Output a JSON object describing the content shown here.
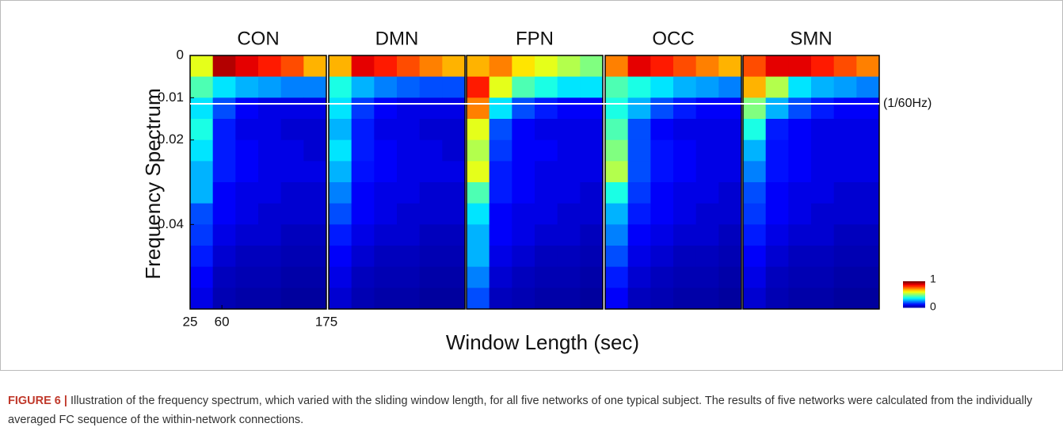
{
  "chart_data": {
    "type": "heatmap",
    "xlabel": "Window Length (sec)",
    "ylabel": "Frequency Spectrum",
    "xlim": [
      25,
      175
    ],
    "xticks": [
      25,
      60,
      175
    ],
    "ylim": [
      0,
      0.06
    ],
    "yticks": [
      0,
      0.01,
      0.02,
      0.04
    ],
    "annotation": "(1/60Hz)",
    "colorbar": {
      "lim": [
        0,
        1
      ],
      "ticks": [
        1,
        0
      ]
    },
    "panels": [
      {
        "title": "CON",
        "z": [
          [
            0.6,
            0.95,
            0.9,
            0.85,
            0.8,
            0.7
          ],
          [
            0.45,
            0.35,
            0.3,
            0.28,
            0.25,
            0.25
          ],
          [
            0.35,
            0.2,
            0.12,
            0.1,
            0.1,
            0.1
          ],
          [
            0.4,
            0.15,
            0.1,
            0.1,
            0.08,
            0.08
          ],
          [
            0.35,
            0.15,
            0.12,
            0.1,
            0.1,
            0.08
          ],
          [
            0.3,
            0.15,
            0.12,
            0.1,
            0.1,
            0.1
          ],
          [
            0.3,
            0.12,
            0.1,
            0.1,
            0.08,
            0.08
          ],
          [
            0.2,
            0.12,
            0.1,
            0.08,
            0.08,
            0.08
          ],
          [
            0.18,
            0.1,
            0.08,
            0.08,
            0.06,
            0.06
          ],
          [
            0.15,
            0.08,
            0.06,
            0.06,
            0.05,
            0.05
          ],
          [
            0.12,
            0.06,
            0.05,
            0.05,
            0.04,
            0.04
          ],
          [
            0.1,
            0.05,
            0.04,
            0.04,
            0.03,
            0.03
          ]
        ]
      },
      {
        "title": "DMN",
        "z": [
          [
            0.7,
            0.9,
            0.85,
            0.8,
            0.75,
            0.7
          ],
          [
            0.4,
            0.3,
            0.25,
            0.22,
            0.2,
            0.2
          ],
          [
            0.35,
            0.18,
            0.12,
            0.1,
            0.1,
            0.1
          ],
          [
            0.3,
            0.15,
            0.1,
            0.1,
            0.08,
            0.08
          ],
          [
            0.35,
            0.15,
            0.12,
            0.1,
            0.1,
            0.08
          ],
          [
            0.3,
            0.14,
            0.12,
            0.1,
            0.1,
            0.1
          ],
          [
            0.25,
            0.12,
            0.1,
            0.1,
            0.08,
            0.08
          ],
          [
            0.2,
            0.12,
            0.1,
            0.08,
            0.08,
            0.08
          ],
          [
            0.15,
            0.1,
            0.08,
            0.08,
            0.06,
            0.06
          ],
          [
            0.12,
            0.08,
            0.06,
            0.06,
            0.05,
            0.05
          ],
          [
            0.1,
            0.06,
            0.05,
            0.05,
            0.04,
            0.04
          ],
          [
            0.08,
            0.05,
            0.04,
            0.04,
            0.03,
            0.03
          ]
        ]
      },
      {
        "title": "FPN",
        "z": [
          [
            0.7,
            0.75,
            0.65,
            0.6,
            0.55,
            0.5
          ],
          [
            0.85,
            0.6,
            0.45,
            0.4,
            0.35,
            0.35
          ],
          [
            0.75,
            0.35,
            0.2,
            0.15,
            0.12,
            0.12
          ],
          [
            0.6,
            0.2,
            0.12,
            0.1,
            0.1,
            0.1
          ],
          [
            0.55,
            0.18,
            0.12,
            0.12,
            0.1,
            0.1
          ],
          [
            0.6,
            0.15,
            0.12,
            0.1,
            0.1,
            0.1
          ],
          [
            0.45,
            0.15,
            0.12,
            0.1,
            0.1,
            0.08
          ],
          [
            0.35,
            0.12,
            0.1,
            0.1,
            0.08,
            0.08
          ],
          [
            0.3,
            0.12,
            0.1,
            0.08,
            0.08,
            0.06
          ],
          [
            0.3,
            0.1,
            0.08,
            0.06,
            0.06,
            0.05
          ],
          [
            0.25,
            0.08,
            0.06,
            0.05,
            0.05,
            0.04
          ],
          [
            0.2,
            0.06,
            0.05,
            0.04,
            0.04,
            0.03
          ]
        ]
      },
      {
        "title": "OCC",
        "z": [
          [
            0.75,
            0.9,
            0.85,
            0.8,
            0.75,
            0.7
          ],
          [
            0.45,
            0.4,
            0.35,
            0.3,
            0.28,
            0.25
          ],
          [
            0.4,
            0.3,
            0.2,
            0.15,
            0.12,
            0.12
          ],
          [
            0.45,
            0.2,
            0.12,
            0.1,
            0.1,
            0.1
          ],
          [
            0.5,
            0.2,
            0.14,
            0.12,
            0.1,
            0.1
          ],
          [
            0.55,
            0.2,
            0.14,
            0.12,
            0.1,
            0.1
          ],
          [
            0.4,
            0.18,
            0.12,
            0.1,
            0.1,
            0.08
          ],
          [
            0.3,
            0.15,
            0.12,
            0.1,
            0.08,
            0.08
          ],
          [
            0.25,
            0.12,
            0.1,
            0.08,
            0.08,
            0.06
          ],
          [
            0.2,
            0.1,
            0.08,
            0.06,
            0.06,
            0.05
          ],
          [
            0.15,
            0.08,
            0.06,
            0.05,
            0.05,
            0.04
          ],
          [
            0.12,
            0.06,
            0.05,
            0.04,
            0.04,
            0.03
          ]
        ]
      },
      {
        "title": "SMN",
        "z": [
          [
            0.8,
            0.9,
            0.9,
            0.85,
            0.8,
            0.75
          ],
          [
            0.7,
            0.55,
            0.35,
            0.3,
            0.28,
            0.25
          ],
          [
            0.5,
            0.3,
            0.2,
            0.15,
            0.12,
            0.12
          ],
          [
            0.4,
            0.15,
            0.12,
            0.1,
            0.1,
            0.1
          ],
          [
            0.3,
            0.14,
            0.12,
            0.1,
            0.1,
            0.1
          ],
          [
            0.25,
            0.14,
            0.12,
            0.1,
            0.1,
            0.1
          ],
          [
            0.2,
            0.12,
            0.1,
            0.1,
            0.08,
            0.08
          ],
          [
            0.18,
            0.12,
            0.1,
            0.08,
            0.08,
            0.08
          ],
          [
            0.15,
            0.1,
            0.08,
            0.08,
            0.06,
            0.06
          ],
          [
            0.12,
            0.08,
            0.06,
            0.06,
            0.05,
            0.05
          ],
          [
            0.1,
            0.06,
            0.05,
            0.05,
            0.04,
            0.04
          ],
          [
            0.08,
            0.05,
            0.04,
            0.04,
            0.03,
            0.03
          ]
        ]
      }
    ]
  },
  "caption": {
    "label": "FIGURE 6 |",
    "text": "Illustration of the frequency spectrum, which varied with the sliding window length, for all five networks of one typical subject. The results of five networks were calculated from the individually averaged FC sequence of the within-network connections."
  }
}
